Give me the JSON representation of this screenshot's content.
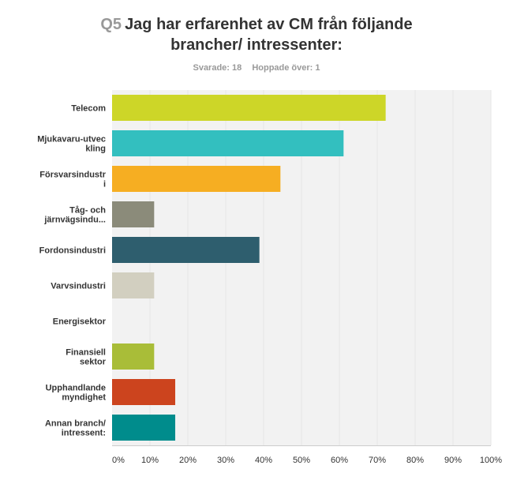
{
  "question": {
    "number": "Q5",
    "title_line1": "Jag har erfarenhet av CM från följande",
    "title_line2": "brancher/ intressenter:"
  },
  "stats": {
    "answered": "Svarade: 18",
    "skipped": "Hoppade över: 1"
  },
  "chart_data": {
    "type": "bar",
    "orientation": "horizontal",
    "categories": [
      [
        "Telecom"
      ],
      [
        "Mjukavaru-utvec",
        "kling"
      ],
      [
        "Försvarsindustr",
        "i"
      ],
      [
        "Tåg- och",
        "järnvägsindu..."
      ],
      [
        "Fordonsindustri"
      ],
      [
        "Varvsindustri"
      ],
      [
        "Energisektor"
      ],
      [
        "Finansiell",
        "sektor"
      ],
      [
        "Upphandlande",
        "myndighet"
      ],
      [
        "Annan branch/",
        "intressent:"
      ]
    ],
    "values": [
      72.22,
      61.11,
      44.44,
      11.11,
      38.89,
      11.11,
      0,
      11.11,
      16.67,
      16.67
    ],
    "colors": [
      "#cdd628",
      "#33bfbf",
      "#f6ae22",
      "#8b8b7a",
      "#2e5e6e",
      "#d2cfc0",
      "#999999",
      "#a9bd38",
      "#cc441e",
      "#008c8c"
    ],
    "xlim": [
      0,
      100
    ],
    "ticks": [
      "0%",
      "10%",
      "20%",
      "30%",
      "40%",
      "50%",
      "60%",
      "70%",
      "80%",
      "90%",
      "100%"
    ],
    "grid": true,
    "grid_color": "#e5e5e5",
    "plot_background": "#f2f2f2"
  }
}
